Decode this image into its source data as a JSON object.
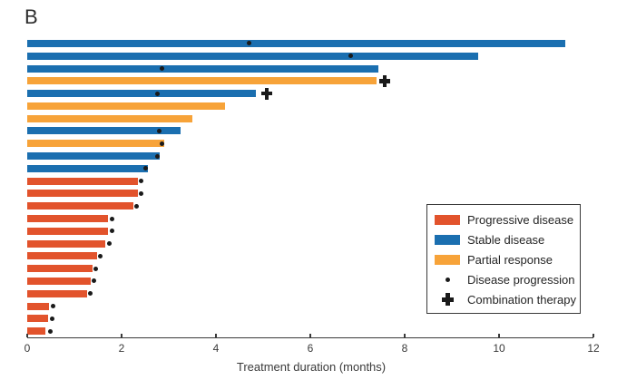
{
  "panel_label": "B",
  "colors": {
    "progressive": "#E2532C",
    "stable": "#1B6FB0",
    "partial": "#F7A339",
    "marker": "#1a1a1a",
    "axis": "#3a3a3a"
  },
  "legend": {
    "items": [
      {
        "marker": "swatch",
        "color_key": "progressive",
        "label": "Progressive disease"
      },
      {
        "marker": "swatch",
        "color_key": "stable",
        "label": "Stable disease"
      },
      {
        "marker": "swatch",
        "color_key": "partial",
        "label": "Partial response"
      },
      {
        "marker": "dot",
        "label": "Disease progression"
      },
      {
        "marker": "plus",
        "label": "Combination therapy"
      }
    ]
  },
  "chart_data": {
    "type": "bar",
    "orientation": "horizontal",
    "title": "B",
    "xlabel": "Treatment duration (months)",
    "xlim": [
      0,
      12
    ],
    "xticks": [
      0,
      2,
      4,
      6,
      8,
      10,
      12
    ],
    "unit": "months",
    "legend_position": "lower right",
    "grid": false,
    "patients": [
      {
        "response": "stable",
        "duration": 11.4,
        "progression_at": 4.7,
        "combination_at": null
      },
      {
        "response": "stable",
        "duration": 9.55,
        "progression_at": 6.85,
        "combination_at": null
      },
      {
        "response": "stable",
        "duration": 7.45,
        "progression_at": 2.85,
        "combination_at": null
      },
      {
        "response": "partial",
        "duration": 7.4,
        "progression_at": null,
        "combination_at": 7.58
      },
      {
        "response": "stable",
        "duration": 4.85,
        "progression_at": 2.76,
        "combination_at": 5.08
      },
      {
        "response": "partial",
        "duration": 4.2,
        "progression_at": null,
        "combination_at": null
      },
      {
        "response": "partial",
        "duration": 3.5,
        "progression_at": null,
        "combination_at": null
      },
      {
        "response": "stable",
        "duration": 3.25,
        "progression_at": 2.8,
        "combination_at": null
      },
      {
        "response": "partial",
        "duration": 2.9,
        "progression_at": 2.86,
        "combination_at": null
      },
      {
        "response": "stable",
        "duration": 2.8,
        "progression_at": 2.76,
        "combination_at": null
      },
      {
        "response": "stable",
        "duration": 2.55,
        "progression_at": 2.51,
        "combination_at": null
      },
      {
        "response": "progressive",
        "duration": 2.35,
        "progression_at": 2.42,
        "combination_at": null
      },
      {
        "response": "progressive",
        "duration": 2.35,
        "progression_at": 2.42,
        "combination_at": null
      },
      {
        "response": "progressive",
        "duration": 2.25,
        "progression_at": 2.32,
        "combination_at": null
      },
      {
        "response": "progressive",
        "duration": 1.72,
        "progression_at": 1.79,
        "combination_at": null
      },
      {
        "response": "progressive",
        "duration": 1.72,
        "progression_at": 1.79,
        "combination_at": null
      },
      {
        "response": "progressive",
        "duration": 1.66,
        "progression_at": 1.73,
        "combination_at": null
      },
      {
        "response": "progressive",
        "duration": 1.48,
        "progression_at": 1.55,
        "combination_at": null
      },
      {
        "response": "progressive",
        "duration": 1.38,
        "progression_at": 1.45,
        "combination_at": null
      },
      {
        "response": "progressive",
        "duration": 1.34,
        "progression_at": 1.41,
        "combination_at": null
      },
      {
        "response": "progressive",
        "duration": 1.26,
        "progression_at": 1.33,
        "combination_at": null
      },
      {
        "response": "progressive",
        "duration": 0.47,
        "progression_at": 0.55,
        "combination_at": null
      },
      {
        "response": "progressive",
        "duration": 0.44,
        "progression_at": 0.52,
        "combination_at": null
      },
      {
        "response": "progressive",
        "duration": 0.39,
        "progression_at": 0.48,
        "combination_at": null
      }
    ]
  }
}
